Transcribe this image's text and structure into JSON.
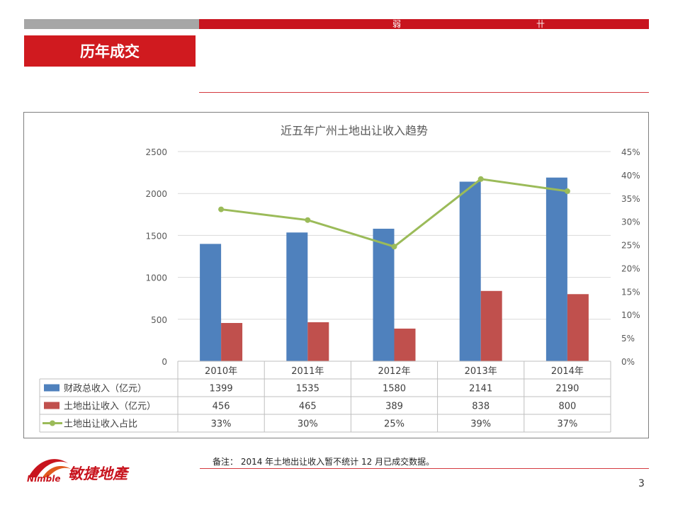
{
  "header": {
    "title": "历年成交",
    "mark_a": "弱",
    "mark_b": "卄"
  },
  "note": "备注： 2014 年土地出让收入暂不统计 12 月已成交数据。",
  "page_number": "3",
  "logo": {
    "latin": "Nimble",
    "cjk": "敏捷地產"
  },
  "colors": {
    "accent": "#c8141e",
    "blue": "#4f81bd",
    "red": "#c0504d",
    "green": "#9bbb59"
  },
  "chart_data": {
    "type": "bar",
    "title": "近五年广州土地出让收入趋势",
    "categories": [
      "2010年",
      "2011年",
      "2012年",
      "2013年",
      "2014年"
    ],
    "left_axis": {
      "min": 0,
      "max": 2500,
      "ticks": [
        "0",
        "500",
        "1000",
        "1500",
        "2000",
        "2500"
      ]
    },
    "right_axis": {
      "min": 0,
      "max": 0.45,
      "ticks": [
        "0%",
        "5%",
        "10%",
        "15%",
        "20%",
        "25%",
        "30%",
        "35%",
        "40%",
        "45%"
      ]
    },
    "series": [
      {
        "name": "财政总收入（亿元）",
        "kind": "bar",
        "axis": "left",
        "values": [
          1399,
          1535,
          1580,
          2141,
          2190
        ],
        "labels": [
          "1399",
          "1535",
          "1580",
          "2141",
          "2190"
        ]
      },
      {
        "name": "土地出让收入（亿元）",
        "kind": "bar",
        "axis": "left",
        "values": [
          456,
          465,
          389,
          838,
          800
        ],
        "labels": [
          "456",
          "465",
          "389",
          "838",
          "800"
        ]
      },
      {
        "name": "土地出让收入占比",
        "kind": "line",
        "axis": "right",
        "values": [
          0.326,
          0.303,
          0.246,
          0.391,
          0.365
        ],
        "labels": [
          "33%",
          "30%",
          "25%",
          "39%",
          "37%"
        ]
      }
    ]
  }
}
